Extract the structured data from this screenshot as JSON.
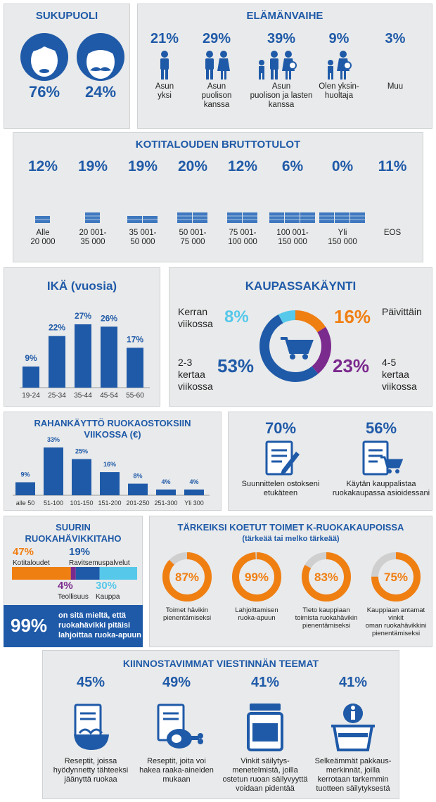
{
  "colors": {
    "blue": "#1f5aa8",
    "orange": "#f07f12",
    "purple": "#7b2a8e",
    "lightblue": "#56c8ea",
    "panel": "#e9eaeb",
    "grey": "#cfcfcf"
  },
  "gender": {
    "title": "SUKUPUOLI",
    "female": "76%",
    "male": "24%"
  },
  "life": {
    "title": "ELÄMÄNVAIHE",
    "items": [
      {
        "pct": "21%",
        "label": "Asun\nyksi",
        "icon": "single-person-icon"
      },
      {
        "pct": "29%",
        "label": "Asun\npuolison\nkanssa",
        "icon": "couple-icon"
      },
      {
        "pct": "39%",
        "label": "Asun\npuolison ja lasten\nkanssa",
        "icon": "family-icon"
      },
      {
        "pct": "9%",
        "label": "Olen yksin-\nhuoltaja",
        "icon": "single-parent-icon"
      },
      {
        "pct": "3%",
        "label": "Muu",
        "icon": ""
      }
    ]
  },
  "income": {
    "title": "KOTITALOUDEN BRUTTOTULOT",
    "items": [
      {
        "pct": "12%",
        "label": "Alle\n20 000"
      },
      {
        "pct": "19%",
        "label": "20 001-\n35 000"
      },
      {
        "pct": "19%",
        "label": "35 001-\n50 000"
      },
      {
        "pct": "20%",
        "label": "50 001-\n75 000"
      },
      {
        "pct": "12%",
        "label": "75 001-\n100 000"
      },
      {
        "pct": "6%",
        "label": "100 001-\n150 000"
      },
      {
        "pct": "0%",
        "label": "Yli\n150 000"
      },
      {
        "pct": "11%",
        "label": "EOS"
      }
    ]
  },
  "age": {
    "title": "IKÄ (vuosia)"
  },
  "shopping": {
    "title": "KAUPASSAKÄYNTI",
    "once": {
      "label": "Kerran\nviikossa",
      "pct": "8%"
    },
    "daily": {
      "label": "Päivittäin",
      "pct": "16%"
    },
    "two_three": {
      "label": "2-3\nkertaa\nviikossa",
      "pct": "53%"
    },
    "four_five": {
      "label": "4-5\nkertaa\nviikossa",
      "pct": "23%"
    }
  },
  "spend": {
    "title": "RAHANKÄYTTÖ RUOKAOSTOKSIIN\nVIIKOSSA (€)"
  },
  "planning": {
    "items": [
      {
        "pct": "70%",
        "label": "Suunnittelen ostokseni\netukäteen"
      },
      {
        "pct": "56%",
        "label": "Käytän kauppalistaa\nruokakaupassa asioidessani"
      }
    ]
  },
  "waste": {
    "title": "SUURIN\nRUOKAHÄVIKKITAHO",
    "items": [
      {
        "pct": "47%",
        "label": "Kotitaloudet",
        "value": 47
      },
      {
        "pct": "4%",
        "label": "Teollisuus",
        "value": 4
      },
      {
        "pct": "19%",
        "label": "Ravitsemuspalvelut",
        "value": 19
      },
      {
        "pct": "30%",
        "label": "Kauppa",
        "value": 30
      }
    ],
    "donate_pct": "99%",
    "donate_text": "on sitä mieltä, että\nruokahävikki pitäisi\nlahjoittaa ruoka-apuun"
  },
  "actions": {
    "title": "TÄRKEIKSI KOETUT TOIMET K-RUOKAKAUPOISSA",
    "subtitle": "(tärkeää tai melko tärkeää)",
    "items": [
      {
        "pct": "87%",
        "value": 87,
        "label": "Toimet hävikin\npienentämiseksi"
      },
      {
        "pct": "99%",
        "value": 99,
        "label": "Lahjoittamisen\nruoka-apuun"
      },
      {
        "pct": "83%",
        "value": 83,
        "label": "Tieto kauppiaan\ntoimista ruokahävikin\npienentämiseksi"
      },
      {
        "pct": "75%",
        "value": 75,
        "label": "Kauppiaan antamat vinkit\noman ruokahävikkini\npienentämiseksi"
      }
    ]
  },
  "themes": {
    "title": "KIINNOSTAVIMMAT VIESTINNÄN TEEMAT",
    "items": [
      {
        "pct": "45%",
        "label": "Reseptit, joissa\nhyödynnetty tähteeksi\njäänyttä ruokaa",
        "icon": "recipe-bowl-icon"
      },
      {
        "pct": "49%",
        "label": "Reseptit, joita voi\nhakea raaka-aineiden\nmukaan",
        "icon": "recipe-meat-icon"
      },
      {
        "pct": "41%",
        "label": "Vinkit säilytys-\nmenetelmistä, joilla\nostetun ruoan säilyvyyttä\nvoidaan pidentää",
        "icon": "jar-icon"
      },
      {
        "pct": "41%",
        "label": "Selkeämmät pakkaus-\nmerkinnät, joilla\nkerrotaan tarkemmin\ntuotteen säilytyksestä",
        "icon": "info-basket-icon"
      }
    ]
  },
  "chart_data": [
    {
      "type": "bar",
      "title": "IKÄ (vuosia)",
      "categories": [
        "19-24",
        "25-34",
        "35-44",
        "45-54",
        "55-60"
      ],
      "values": [
        9,
        22,
        27,
        26,
        17
      ],
      "data_labels": [
        "9%",
        "22%",
        "27%",
        "26%",
        "17%"
      ],
      "ylim": [
        0,
        30
      ]
    },
    {
      "type": "bar",
      "title": "RAHANKÄYTTÖ RUOKAOSTOKSIIN VIIKOSSA (€)",
      "categories": [
        "alle 50",
        "51-100",
        "101-150",
        "151-200",
        "201-250",
        "251-300",
        "Yli 300"
      ],
      "values": [
        9,
        33,
        25,
        16,
        8,
        4,
        4
      ],
      "data_labels": [
        "9%",
        "33%",
        "25%",
        "16%",
        "8%",
        "4%",
        "4%"
      ],
      "ylim": [
        0,
        35
      ]
    },
    {
      "type": "pie",
      "title": "KAUPASSAKÄYNTI",
      "categories": [
        "Päivittäin",
        "4-5 kertaa viikossa",
        "2-3 kertaa viikossa",
        "Kerran viikossa"
      ],
      "values": [
        16,
        23,
        53,
        8
      ]
    }
  ]
}
